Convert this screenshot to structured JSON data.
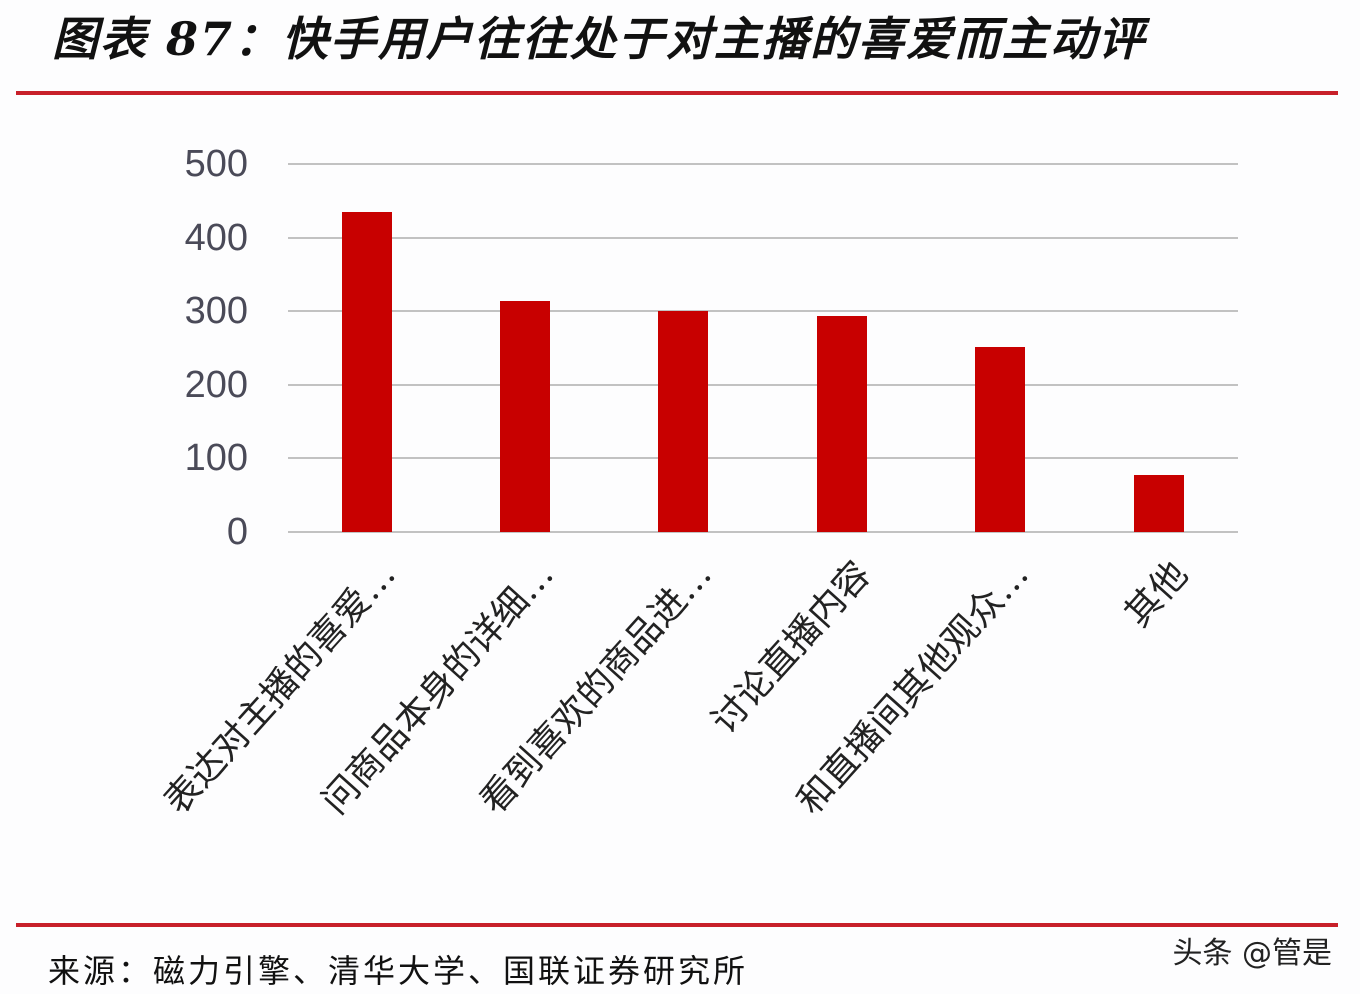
{
  "header": {
    "title": "图表 87：快手用户往往处于对主播的喜爱而主动评"
  },
  "footer": {
    "source": "来源：磁力引擎、清华大学、国联证券研究所",
    "watermark": "头条 @管是"
  },
  "colors": {
    "bar": "#c80000",
    "rule": "#c8202a",
    "grid": "#c2c2c2"
  },
  "chart_data": {
    "type": "bar",
    "title": "",
    "xlabel": "",
    "ylabel": "",
    "ylim": [
      0,
      500
    ],
    "yticks": [
      "0",
      "100",
      "200",
      "300",
      "400",
      "500"
    ],
    "grid": true,
    "legend": null,
    "categories": [
      "表达对主播的喜爱…",
      "问商品本身的详细…",
      "看到喜欢的商品进…",
      "讨论直播内容",
      "和直播间其他观众…",
      "其他"
    ],
    "values": [
      435,
      314,
      300,
      293,
      251,
      78
    ]
  }
}
